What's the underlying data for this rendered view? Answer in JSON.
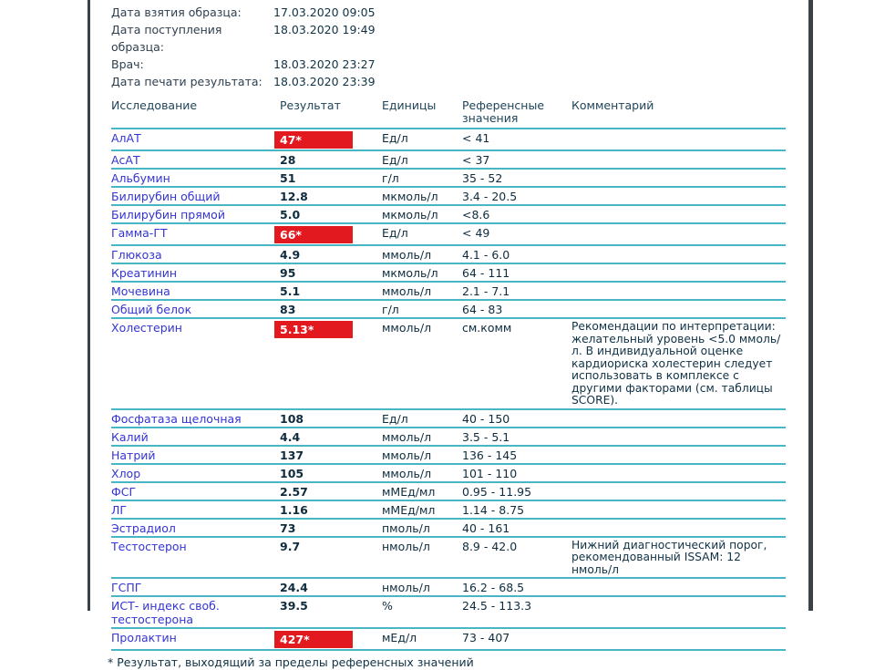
{
  "meta": [
    {
      "label": "Дата взятия образца:",
      "value": "17.03.2020 09:05"
    },
    {
      "label": "Дата поступления образца:",
      "value": "18.03.2020 19:49"
    },
    {
      "label": "Врач:",
      "value": "18.03.2020 23:27"
    },
    {
      "label": "Дата печати результата:",
      "value": "18.03.2020 23:39"
    }
  ],
  "columns": {
    "test": "Исследование",
    "result": "Результат",
    "units": "Единицы",
    "reference": "Референсные значения",
    "comment": "Комментарий"
  },
  "rows": [
    {
      "name": "АлАТ",
      "result": "47*",
      "flag": true,
      "units": "Ед/л",
      "reference": "< 41",
      "comment": ""
    },
    {
      "name": "АсАТ",
      "result": "28",
      "flag": false,
      "units": "Ед/л",
      "reference": "< 37",
      "comment": ""
    },
    {
      "name": "Альбумин",
      "result": "51",
      "flag": false,
      "units": "г/л",
      "reference": "35 - 52",
      "comment": ""
    },
    {
      "name": "Билирубин общий",
      "result": "12.8",
      "flag": false,
      "units": "мкмоль/л",
      "reference": "3.4 - 20.5",
      "comment": ""
    },
    {
      "name": "Билирубин прямой",
      "result": "5.0",
      "flag": false,
      "units": "мкмоль/л",
      "reference": "<8.6",
      "comment": ""
    },
    {
      "name": "Гамма-ГТ",
      "result": "66*",
      "flag": true,
      "units": "Ед/л",
      "reference": "< 49",
      "comment": ""
    },
    {
      "name": "Глюкоза",
      "result": "4.9",
      "flag": false,
      "units": "ммоль/л",
      "reference": "4.1 - 6.0",
      "comment": ""
    },
    {
      "name": "Креатинин",
      "result": "95",
      "flag": false,
      "units": "мкмоль/л",
      "reference": "64 - 111",
      "comment": ""
    },
    {
      "name": "Мочевина",
      "result": "5.1",
      "flag": false,
      "units": "ммоль/л",
      "reference": "2.1 - 7.1",
      "comment": ""
    },
    {
      "name": "Общий белок",
      "result": "83",
      "flag": false,
      "units": "г/л",
      "reference": "64 - 83",
      "comment": ""
    },
    {
      "name": "Холестерин",
      "result": "5.13*",
      "flag": true,
      "units": "ммоль/л",
      "reference": "см.комм",
      "comment": "Рекомендации по интерпретации: желательный уровень <5.0 ммоль/л. В индивидуальной оценке кардиориска холестерин следует использовать в комплексе с другими факторами (см. таблицы SCORE)."
    },
    {
      "name": "Фосфатаза щелочная",
      "result": "108",
      "flag": false,
      "units": "Ед/л",
      "reference": "40 - 150",
      "comment": ""
    },
    {
      "name": "Калий",
      "result": "4.4",
      "flag": false,
      "units": "ммоль/л",
      "reference": "3.5 - 5.1",
      "comment": ""
    },
    {
      "name": "Натрий",
      "result": "137",
      "flag": false,
      "units": "ммоль/л",
      "reference": "136 - 145",
      "comment": ""
    },
    {
      "name": "Хлор",
      "result": "105",
      "flag": false,
      "units": "ммоль/л",
      "reference": "101 - 110",
      "comment": ""
    },
    {
      "name": "ФСГ",
      "result": "2.57",
      "flag": false,
      "units": "мМЕд/мл",
      "reference": "0.95 - 11.95",
      "comment": ""
    },
    {
      "name": "ЛГ",
      "result": "1.16",
      "flag": false,
      "units": "мМЕд/мл",
      "reference": "1.14 - 8.75",
      "comment": ""
    },
    {
      "name": "Эстрадиол",
      "result": "73",
      "flag": false,
      "units": "пмоль/л",
      "reference": "40 - 161",
      "comment": ""
    },
    {
      "name": "Тестостерон",
      "result": "9.7",
      "flag": false,
      "units": "нмоль/л",
      "reference": "8.9 - 42.0",
      "comment": "Нижний диагностический порог, рекомендованный ISSAM: 12 нмоль/л"
    },
    {
      "name": "ГСПГ",
      "result": "24.4",
      "flag": false,
      "units": "нмоль/л",
      "reference": "16.2 - 68.5",
      "comment": ""
    },
    {
      "name": "ИСТ- индекс своб. тестостерона",
      "result": "39.5",
      "flag": false,
      "units": "%",
      "reference": "24.5 - 113.3",
      "comment": ""
    },
    {
      "name": "Пролактин",
      "result": "427*",
      "flag": true,
      "units": "мЕд/л",
      "reference": "73 - 407",
      "comment": ""
    }
  ],
  "footnote": "* Результат, выходящий за пределы референсных значений",
  "colors": {
    "separator_teal": "#49b6c6",
    "out_of_range_red": "#e2191f",
    "test_name_blue": "#3434d4",
    "value_navy": "#0e2c3e",
    "label_slate": "#2f4050",
    "border_rule_dark": "#3a4248"
  }
}
